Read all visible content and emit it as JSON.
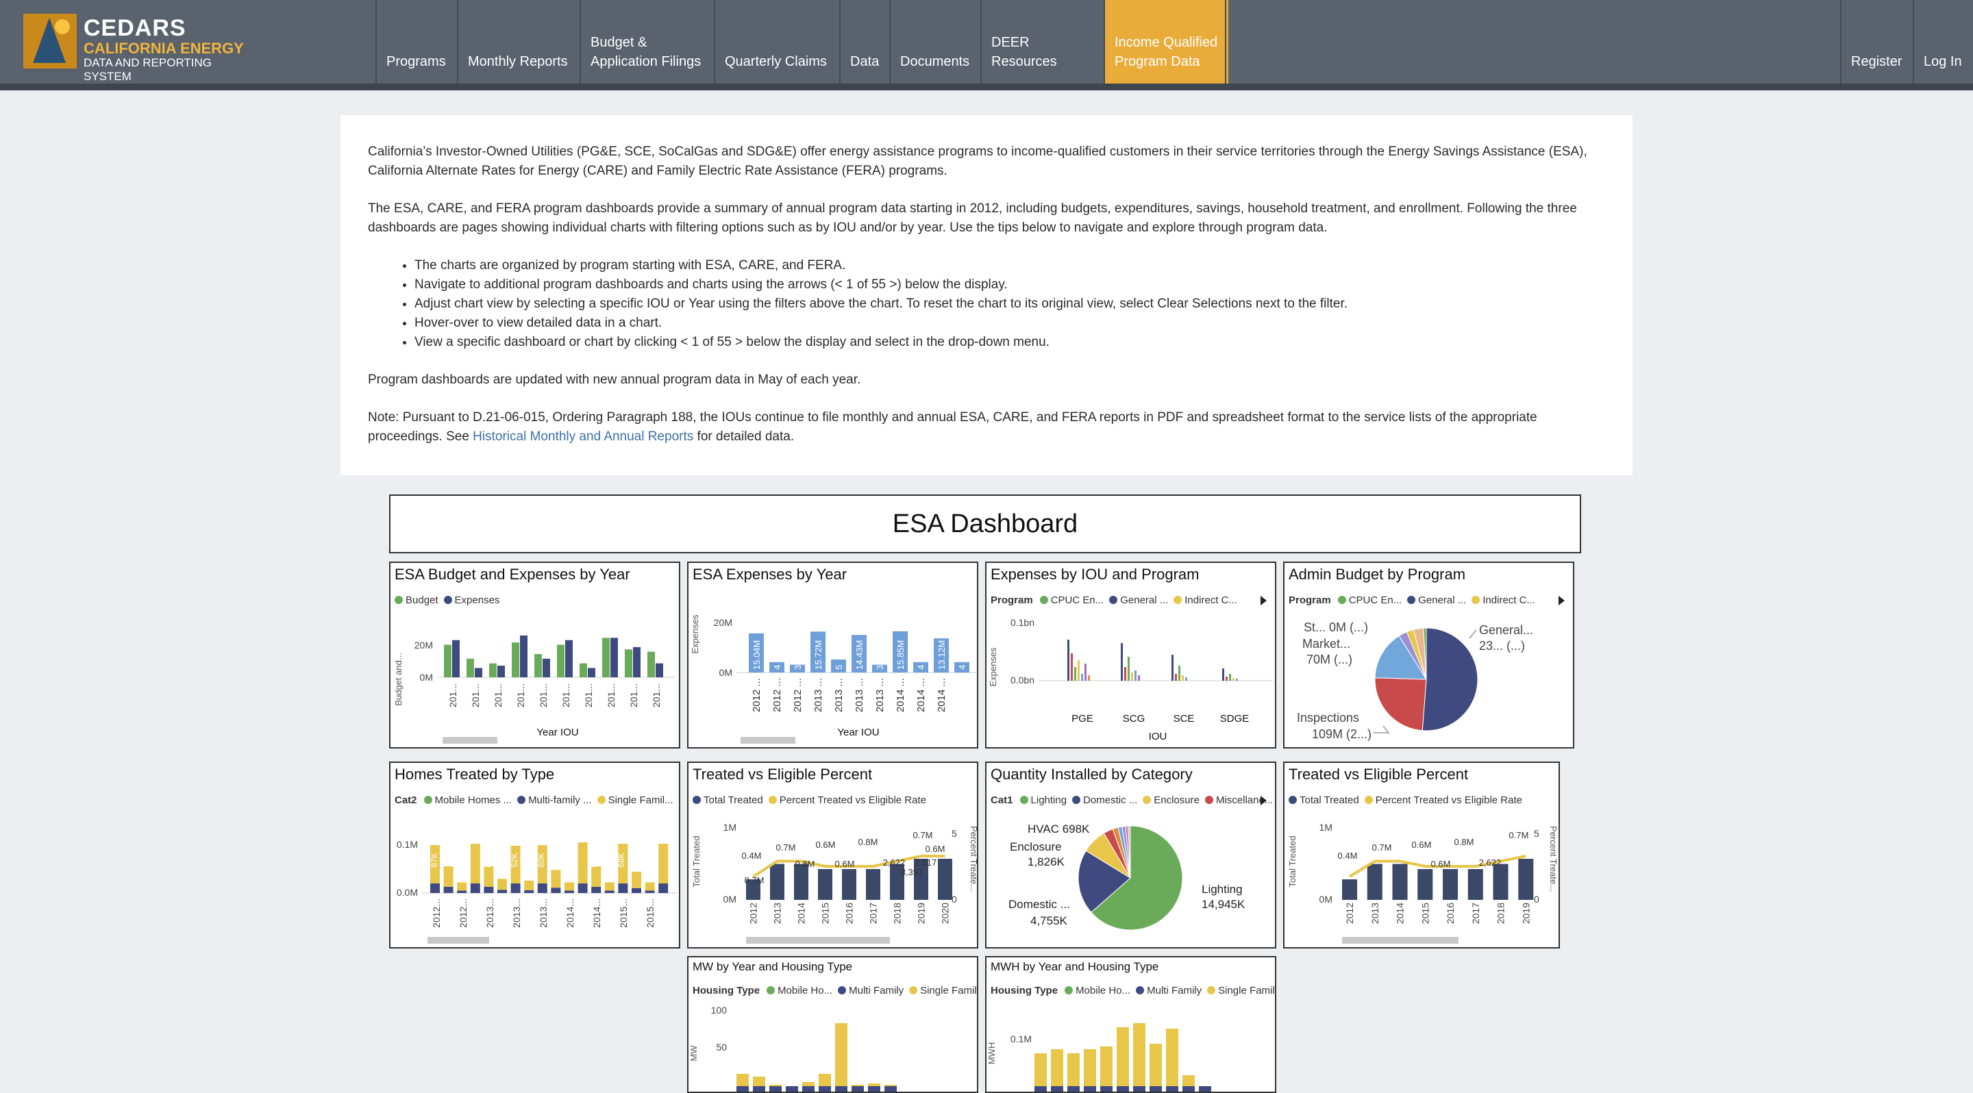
{
  "header": {
    "logo_title": "CEDARS",
    "logo_subtitle": "CALIFORNIA ENERGY",
    "logo_tagline": "DATA AND REPORTING SYSTEM",
    "nav": [
      {
        "line1": "",
        "line2": "Programs"
      },
      {
        "line1": "",
        "line2": "Monthly Reports"
      },
      {
        "line1": "Budget &",
        "line2": "Application Filings"
      },
      {
        "line1": "",
        "line2": "Quarterly Claims"
      },
      {
        "line1": "",
        "line2": "Data"
      },
      {
        "line1": "",
        "line2": "Documents"
      },
      {
        "line1": "",
        "line2": "DEER Resources"
      },
      {
        "line1": "Income Qualified",
        "line2": "Program Data"
      }
    ],
    "register": "Register",
    "login": "Log In",
    "colors": {
      "nav_bg": "#59626d",
      "active_bg": "#e9ac3b"
    }
  },
  "intro": {
    "p1": "California’s Investor-Owned Utilities (PG&E, SCE, SoCalGas and SDG&E) offer energy assistance programs to income-qualified customers in their service territories through the Energy Savings Assistance (ESA), California Alternate Rates for Energy (CARE) and Family Electric Rate Assistance (FERA) programs.",
    "p2": "The ESA, CARE, and FERA program dashboards provide a summary of annual program data starting in 2012, including budgets, expenditures, savings, household treatment, and enrollment. Following the three dashboards are pages showing individual charts with filtering options such as by IOU and/or by year. Use the tips below to navigate and explore through program data.",
    "tips": [
      "The charts are organized by program starting with ESA, CARE, and FERA.",
      "Navigate to additional program dashboards and charts using the arrows (< 1 of 55 >) below the display.",
      "Adjust chart view by selecting a specific IOU or Year using the filters above the chart. To reset the chart to its original view, select Clear Selections next to the filter.",
      "Hover-over to view detailed data in a chart.",
      "View a specific dashboard or chart by clicking < 1 of 55 > below the display and select in the drop-down menu."
    ],
    "p3": "Program dashboards are updated with new annual program data in May of each year.",
    "p4_pre": "Note: Pursuant to D.21-06-015, Ordering Paragraph 188, the IOUs continue to file monthly and annual ESA, CARE, and FERA reports in PDF and spreadsheet format to the service lists of the appropriate proceedings. See ",
    "p4_link": "Historical Monthly and Annual Reports",
    "p4_post": " for detailed data."
  },
  "dashboard": {
    "title": "ESA Dashboard",
    "cards": {
      "budget": {
        "title": "ESA Budget and Expenses by Year",
        "legend": [
          "Budget",
          "Expenses"
        ],
        "ylabel": "Budget and...",
        "xlabel": "Year IOU",
        "yticks": [
          "20M",
          "0M"
        ],
        "xticks": [
          "201...",
          "201...",
          "201...",
          "201...",
          "201...",
          "201...",
          "201...",
          "201...",
          "201...",
          "201..."
        ]
      },
      "expenses": {
        "title": "ESA Expenses by Year",
        "ylabel": "Expenses",
        "xlabel": "Year IOU",
        "yticks": [
          "20M",
          "0M"
        ],
        "xticks": [
          "2012 ...",
          "2012 ...",
          "2012 ...",
          "2013 ...",
          "2013 ...",
          "2013 ...",
          "2013 ...",
          "2014 ...",
          "2014 ...",
          "2014 ..."
        ],
        "labels": [
          "15.04M",
          "4",
          "3",
          "15.72M",
          "5",
          "14.43M",
          "3",
          "15.85M",
          "4",
          "13.12M",
          "4"
        ]
      },
      "iou": {
        "title": "Expenses by IOU and Program",
        "legend_label": "Program",
        "legend": [
          "CPUC En...",
          "General ...",
          "Indirect C..."
        ],
        "ylabel": "Expenses",
        "xlabel": "IOU",
        "yticks": [
          "0.1bn",
          "0.0bn"
        ],
        "xticks": [
          "PGE",
          "SCG",
          "SCE",
          "SDGE"
        ]
      },
      "admin": {
        "title": "Admin Budget by Program",
        "legend_label": "Program",
        "legend": [
          "CPUC En...",
          "General ...",
          "Indirect C..."
        ],
        "labels": {
          "st": "St... 0M (...)",
          "market1": "Market...",
          "market2": "70M (...)",
          "general1": "General...",
          "general2": "23... (...)",
          "insp1": "Inspections",
          "insp2": "109M (2...)"
        }
      },
      "homes": {
        "title": "Homes Treated by Type",
        "legend_label": "Cat2",
        "legend": [
          "Mobile Homes ...",
          "Multi-family ...",
          "Single Famil..."
        ],
        "yticks": [
          "0.1M",
          "0.0M"
        ],
        "labels": [
          "87K",
          "50K",
          "83K",
          "52K",
          "80K",
          "84K",
          "51K",
          "68K",
          "72K"
        ],
        "xticks": [
          "2012...",
          "2012...",
          "2013...",
          "2013...",
          "2013...",
          "2014...",
          "2014...",
          "2015...",
          "2015..."
        ]
      },
      "tve1": {
        "title": "Treated vs Eligible Percent",
        "legend": [
          "Total Treated",
          "Percent Treated vs Eligible Rate"
        ],
        "ylabel": "Total Treated",
        "ylabel2": "Percent Treate...",
        "yticks": [
          "1M",
          "0M"
        ],
        "yticks2": [
          "5",
          "0"
        ],
        "xticks": [
          "2012",
          "2013",
          "2014",
          "2015",
          "2016",
          "2017",
          "2018",
          "2019",
          "2020"
        ],
        "labels": [
          "0.4M",
          "0.7M",
          "0.6M",
          "0.6M",
          "0.8M",
          "2,622",
          "0.7M",
          "0.6M",
          "0.7M",
          "0.8M",
          "3,397",
          "2,517"
        ]
      },
      "qty": {
        "title": "Quantity Installed by Category",
        "legend_label": "Cat1",
        "legend": [
          "Lighting",
          "Domestic ...",
          "Enclosure",
          "Miscellane..."
        ],
        "labels": {
          "hvac": "HVAC 698K",
          "enc1": "Enclosure",
          "enc2": "1,826K",
          "dom1": "Domestic ...",
          "dom2": "4,755K",
          "light1": "Lighting",
          "light2": "14,945K"
        }
      },
      "tve2": {
        "title": "Treated vs Eligible Percent",
        "legend": [
          "Total Treated",
          "Percent Treated vs Eligible Rate"
        ],
        "ylabel": "Total Treated",
        "ylabel2": "Percent Treate...",
        "yticks": [
          "1M",
          "0M"
        ],
        "yticks2": [
          "5",
          "0"
        ],
        "xticks": [
          "2012",
          "2013",
          "2014",
          "2015",
          "2016",
          "2017",
          "2018",
          "2019"
        ],
        "labels": [
          "0.4M",
          "0.7M",
          "0.6M",
          "0.6M",
          "0.8M",
          "2,622",
          "0.7M"
        ]
      },
      "mw": {
        "title": "MW by Year and Housing Type",
        "legend_label": "Housing Type",
        "legend": [
          "Mobile Ho...",
          "Multi Family",
          "Single Family"
        ],
        "ylabel": "MW",
        "yticks": [
          "100",
          "50"
        ]
      },
      "mwh": {
        "title": "MWH by Year and Housing Type",
        "legend_label": "Housing Type",
        "legend": [
          "Mobile Ho...",
          "Multi Family",
          "Single Family"
        ],
        "ylabel": "MWH",
        "yticks": [
          "0.1M"
        ]
      }
    }
  },
  "chart_data": [
    {
      "type": "bar",
      "title": "ESA Budget and Expenses by Year",
      "xlabel": "Year IOU",
      "ylabel": "Budget and...",
      "series": [
        {
          "name": "Budget",
          "values": [
            14,
            8,
            6,
            15,
            10,
            14,
            6,
            17,
            12,
            11
          ]
        },
        {
          "name": "Expenses",
          "values": [
            16,
            4,
            5,
            18,
            8,
            16,
            4,
            17,
            13,
            6
          ]
        }
      ],
      "ylim": [
        0,
        28
      ]
    },
    {
      "type": "bar",
      "title": "ESA Expenses by Year",
      "xlabel": "Year IOU",
      "ylabel": "Expenses",
      "values": [
        15.04,
        4,
        3,
        15.72,
        5,
        14.43,
        3,
        15.85,
        4,
        13.12,
        4
      ],
      "ylim": [
        0,
        25
      ]
    },
    {
      "type": "bar",
      "title": "Expenses by IOU and Program",
      "categories": [
        "PGE",
        "SCG",
        "SCE",
        "SDGE"
      ],
      "xlabel": "IOU",
      "ylabel": "Expenses"
    },
    {
      "type": "pie",
      "title": "Admin Budget by Program",
      "slices": [
        {
          "name": "General",
          "value": 230
        },
        {
          "name": "Inspections",
          "value": 109
        },
        {
          "name": "Market",
          "value": 70
        },
        {
          "name": "Other",
          "value": 40
        }
      ]
    },
    {
      "type": "bar",
      "title": "Homes Treated by Type",
      "values_k": [
        87,
        50,
        83,
        52,
        80,
        84,
        51,
        68,
        72
      ]
    },
    {
      "type": "bar",
      "title": "Treated vs Eligible Percent",
      "categories": [
        "2012",
        "2013",
        "2014",
        "2015",
        "2016",
        "2017",
        "2018",
        "2019",
        "2020"
      ],
      "series": [
        {
          "name": "Total Treated",
          "values": [
            0.4,
            0.7,
            0.7,
            0.6,
            0.6,
            0.6,
            0.7,
            0.8,
            0.8
          ]
        }
      ]
    },
    {
      "type": "pie",
      "title": "Quantity Installed by Category",
      "slices": [
        {
          "name": "Lighting",
          "value": 14945
        },
        {
          "name": "Domestic",
          "value": 4755
        },
        {
          "name": "Enclosure",
          "value": 1826
        },
        {
          "name": "HVAC",
          "value": 698
        }
      ]
    },
    {
      "type": "bar",
      "title": "Treated vs Eligible Percent",
      "categories": [
        "2012",
        "2013",
        "2014",
        "2015",
        "2016",
        "2017",
        "2018",
        "2019"
      ],
      "series": [
        {
          "name": "Total Treated",
          "values": [
            0.4,
            0.7,
            0.7,
            0.6,
            0.6,
            0.6,
            0.7,
            0.8
          ]
        }
      ]
    },
    {
      "type": "bar",
      "title": "MW by Year and Housing Type",
      "ylabel": "MW"
    },
    {
      "type": "bar",
      "title": "MWH by Year and Housing Type",
      "ylabel": "MWH"
    }
  ]
}
